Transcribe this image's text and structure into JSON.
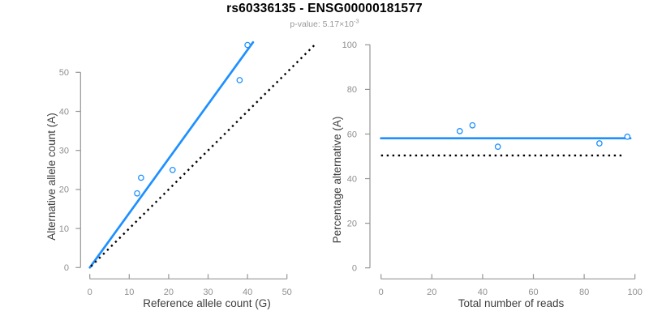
{
  "header": {
    "title": "rs60336135 - ENSG00000181577",
    "subtitle_text": "p-value: 5.17×10",
    "subtitle_exponent": "-3"
  },
  "colors": {
    "accent_blue": "#1E90FF",
    "identity_black": "#000000",
    "axis_gray": "#969696",
    "tick_label_gray": "#8F8F8F",
    "axis_title_gray": "#3D3D3D",
    "title_black": "#000000",
    "subtitle_gray": "#999999",
    "point_fill": "#FFFFFF",
    "background": "#FFFFFF"
  },
  "chart_data": [
    {
      "type": "scatter",
      "panel": "allele-counts",
      "xlabel": "Reference allele count (G)",
      "ylabel": "Alternative allele count (A)",
      "xlim": [
        0,
        50
      ],
      "ylim": [
        0,
        50
      ],
      "xticks": [
        0,
        10,
        20,
        30,
        40,
        50
      ],
      "yticks": [
        0,
        10,
        20,
        30,
        40,
        50
      ],
      "grid": false,
      "points": [
        [
          12,
          19
        ],
        [
          13,
          23
        ],
        [
          21,
          25
        ],
        [
          38,
          48
        ],
        [
          40,
          57
        ]
      ],
      "lines": [
        {
          "role": "fit",
          "x1": 0,
          "y1": 0,
          "x2": 41.4,
          "y2": 57.7,
          "style": "solid",
          "color": "blue"
        },
        {
          "role": "identity",
          "x1": 0.3,
          "y1": 0.3,
          "x2": 57,
          "y2": 57,
          "style": "dotted",
          "color": "black"
        }
      ]
    },
    {
      "type": "scatter",
      "panel": "percentage-vs-coverage",
      "xlabel": "Total number of reads",
      "ylabel": "Percentage alternative (A)",
      "xlim": [
        0,
        100
      ],
      "ylim": [
        0,
        100
      ],
      "xticks": [
        0,
        20,
        40,
        60,
        80,
        100
      ],
      "yticks": [
        0,
        20,
        40,
        60,
        80,
        100
      ],
      "grid": false,
      "points": [
        [
          31,
          61.3
        ],
        [
          36,
          63.9
        ],
        [
          46,
          54.3
        ],
        [
          86,
          55.8
        ],
        [
          97,
          58.8
        ]
      ],
      "lines": [
        {
          "role": "mean",
          "x1": 0,
          "y1": 58.1,
          "x2": 98.2,
          "y2": 58.1,
          "style": "solid",
          "color": "blue"
        },
        {
          "role": "null",
          "x1": 0,
          "y1": 50.4,
          "x2": 95.3,
          "y2": 50.4,
          "style": "dotted",
          "color": "black"
        }
      ]
    }
  ]
}
